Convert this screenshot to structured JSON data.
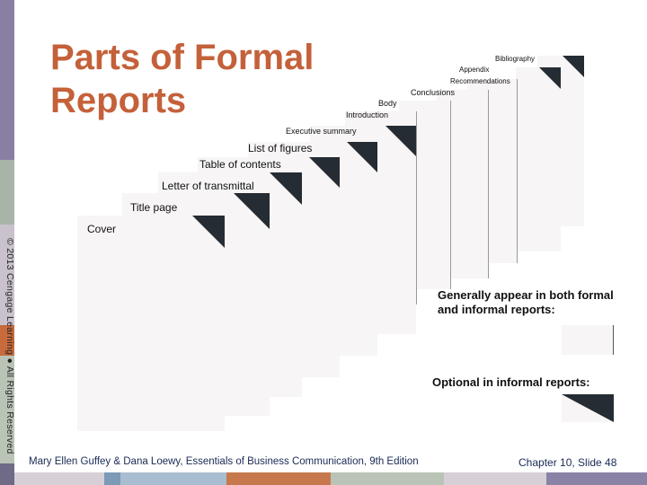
{
  "title": "Parts of Formal Reports",
  "pages": {
    "bibliography": "Bibliography",
    "appendix": "Appendix",
    "recommendations": "Recommendations",
    "conclusions": "Conclusions",
    "body": "Body",
    "introduction": "Introduction",
    "executive_summary": "Executive summary",
    "list_of_figures": "List of figures",
    "table_of_contents": "Table of contents",
    "letter_of_transmittal": "Letter of transmittal",
    "title_page": "Title page",
    "cover": "Cover"
  },
  "legend": {
    "both": "Generally appear in both formal and informal reports:",
    "optional": "Optional in informal reports:"
  },
  "copyright": "© 2013 Cengage Learning ● All Rights Reserved",
  "footer": {
    "left": "Mary Ellen Guffey & Dana Loewy, Essentials of Business Communication, 9th Edition",
    "right": "Chapter 10, Slide 48"
  },
  "colors": {
    "title": "#c4613a",
    "optional_corner": "#252c33",
    "page": "#f7f5f5",
    "footer_text": "#1a2a55"
  }
}
